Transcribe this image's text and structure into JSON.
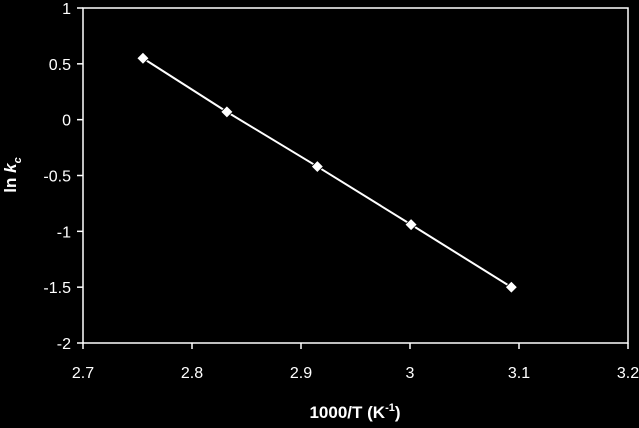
{
  "chart_data": {
    "type": "scatter",
    "xlabel": "1000/T (K",
    "xlabel_sup": "-1",
    "xlabel_end": ")",
    "ylabel": "ln ",
    "ylabel_var": "k",
    "ylabel_sub": "c",
    "xlim": [
      2.7,
      3.2
    ],
    "ylim": [
      -2,
      1
    ],
    "xticks": [
      "2.7",
      "2.8",
      "2.9",
      "3",
      "3.1",
      "3.2"
    ],
    "yticks": [
      "1",
      "0.5",
      "0",
      "-0.5",
      "-1",
      "-1.5",
      "-2"
    ],
    "grid": false,
    "legend": "none",
    "series": [
      {
        "x": [
          2.755,
          2.832,
          2.915,
          3.001,
          3.093
        ],
        "y": [
          0.55,
          0.07,
          -0.42,
          -0.94,
          -1.5
        ],
        "marker": "diamond",
        "fit_line": true
      }
    ],
    "colors": {
      "background": "#000000",
      "foreground": "#ffffff"
    }
  }
}
